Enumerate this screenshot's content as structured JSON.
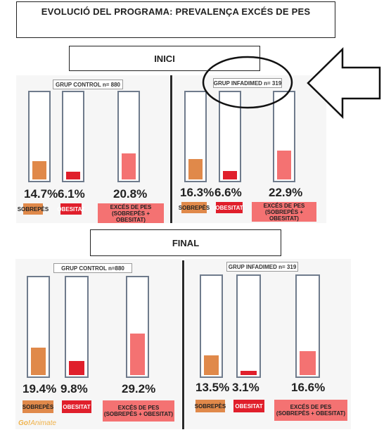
{
  "title": "EVOLUCIÓ DEL PROGRAMA: PREVALENÇA EXCÉS DE PES",
  "inici_label": "INICI",
  "final_label": "FINAL",
  "logo": {
    "go": "Go!",
    "animate": "Animate"
  },
  "colors": {
    "sobrepes": "#e0894a",
    "obesitat": "#e01f2b",
    "exces": "#f47272"
  },
  "labels": {
    "sobrepes": "SOBREPÈS",
    "obesitat": "OBESITAT",
    "exces_line1": "EXCÉS DE PES",
    "exces_line2": "(SOBREPÈS + OBESITAT)"
  },
  "panels": {
    "inici_control": {
      "group": "GRUP CONTROL n= 880",
      "sobrepes": "14.7%",
      "obesitat": "6.1%",
      "exces": "20.8%",
      "values": [
        14.7,
        6.1,
        20.8
      ]
    },
    "inici_infadimed": {
      "group": "GRUP INFADIMED n= 319",
      "sobrepes": "16.3%",
      "obesitat": "6.6%",
      "exces": "22.9%",
      "values": [
        16.3,
        6.6,
        22.9
      ]
    },
    "final_control": {
      "group": "GRUP CONTROL n=880",
      "sobrepes": "19.4%",
      "obesitat": "9.8%",
      "exces": "29.2%",
      "values": [
        19.4,
        9.8,
        29.2
      ]
    },
    "final_infadimed": {
      "group": "GRUP INFADIMED n= 319",
      "sobrepes": "13.5%",
      "obesitat": "3.1%",
      "exces": "16.6%",
      "values": [
        13.5,
        3.1,
        16.6
      ]
    }
  }
}
